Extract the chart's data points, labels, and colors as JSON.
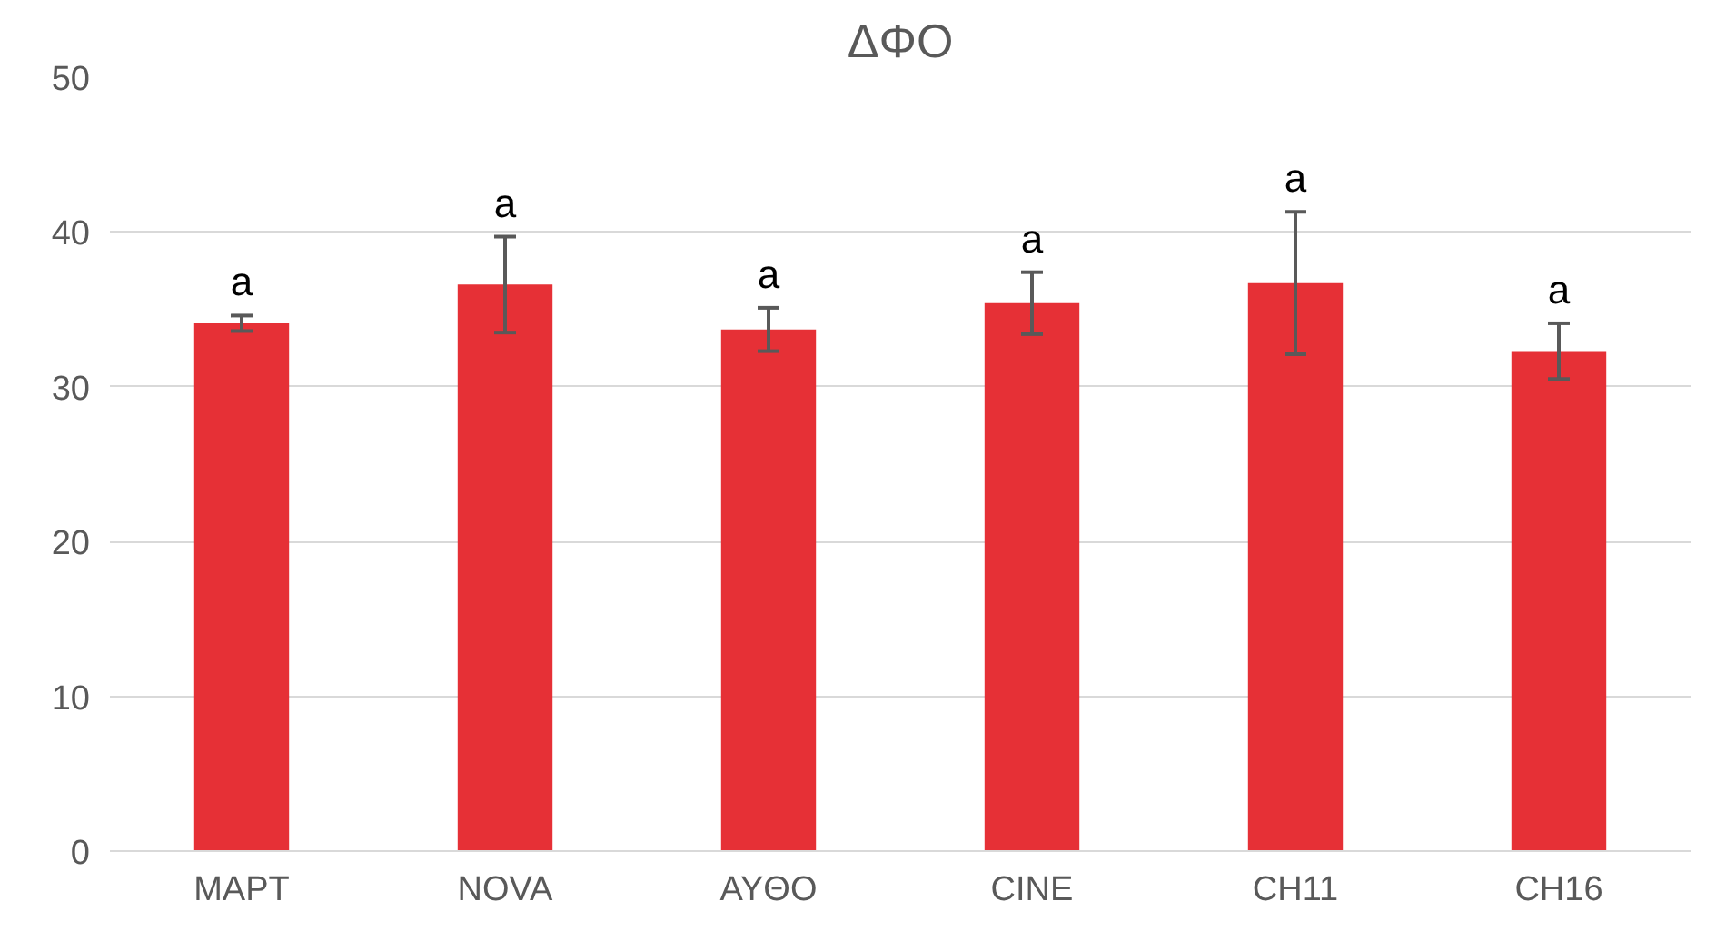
{
  "chart_data": {
    "type": "bar",
    "title": "ΔΦΟ",
    "categories": [
      "MAPT",
      "NOVA",
      "AYΘO",
      "CINE",
      "CH11",
      "CH16"
    ],
    "values": [
      34.1,
      36.6,
      33.7,
      35.4,
      36.7,
      32.3
    ],
    "errors": [
      0.5,
      3.1,
      1.4,
      2.0,
      4.6,
      1.8
    ],
    "color": "#e63036",
    "ylim": [
      0,
      50
    ],
    "yticks": [
      0,
      10,
      20,
      30,
      40,
      50
    ],
    "grid": "y",
    "annotations": [
      "a",
      "a",
      "a",
      "a",
      "a",
      "a"
    ]
  }
}
